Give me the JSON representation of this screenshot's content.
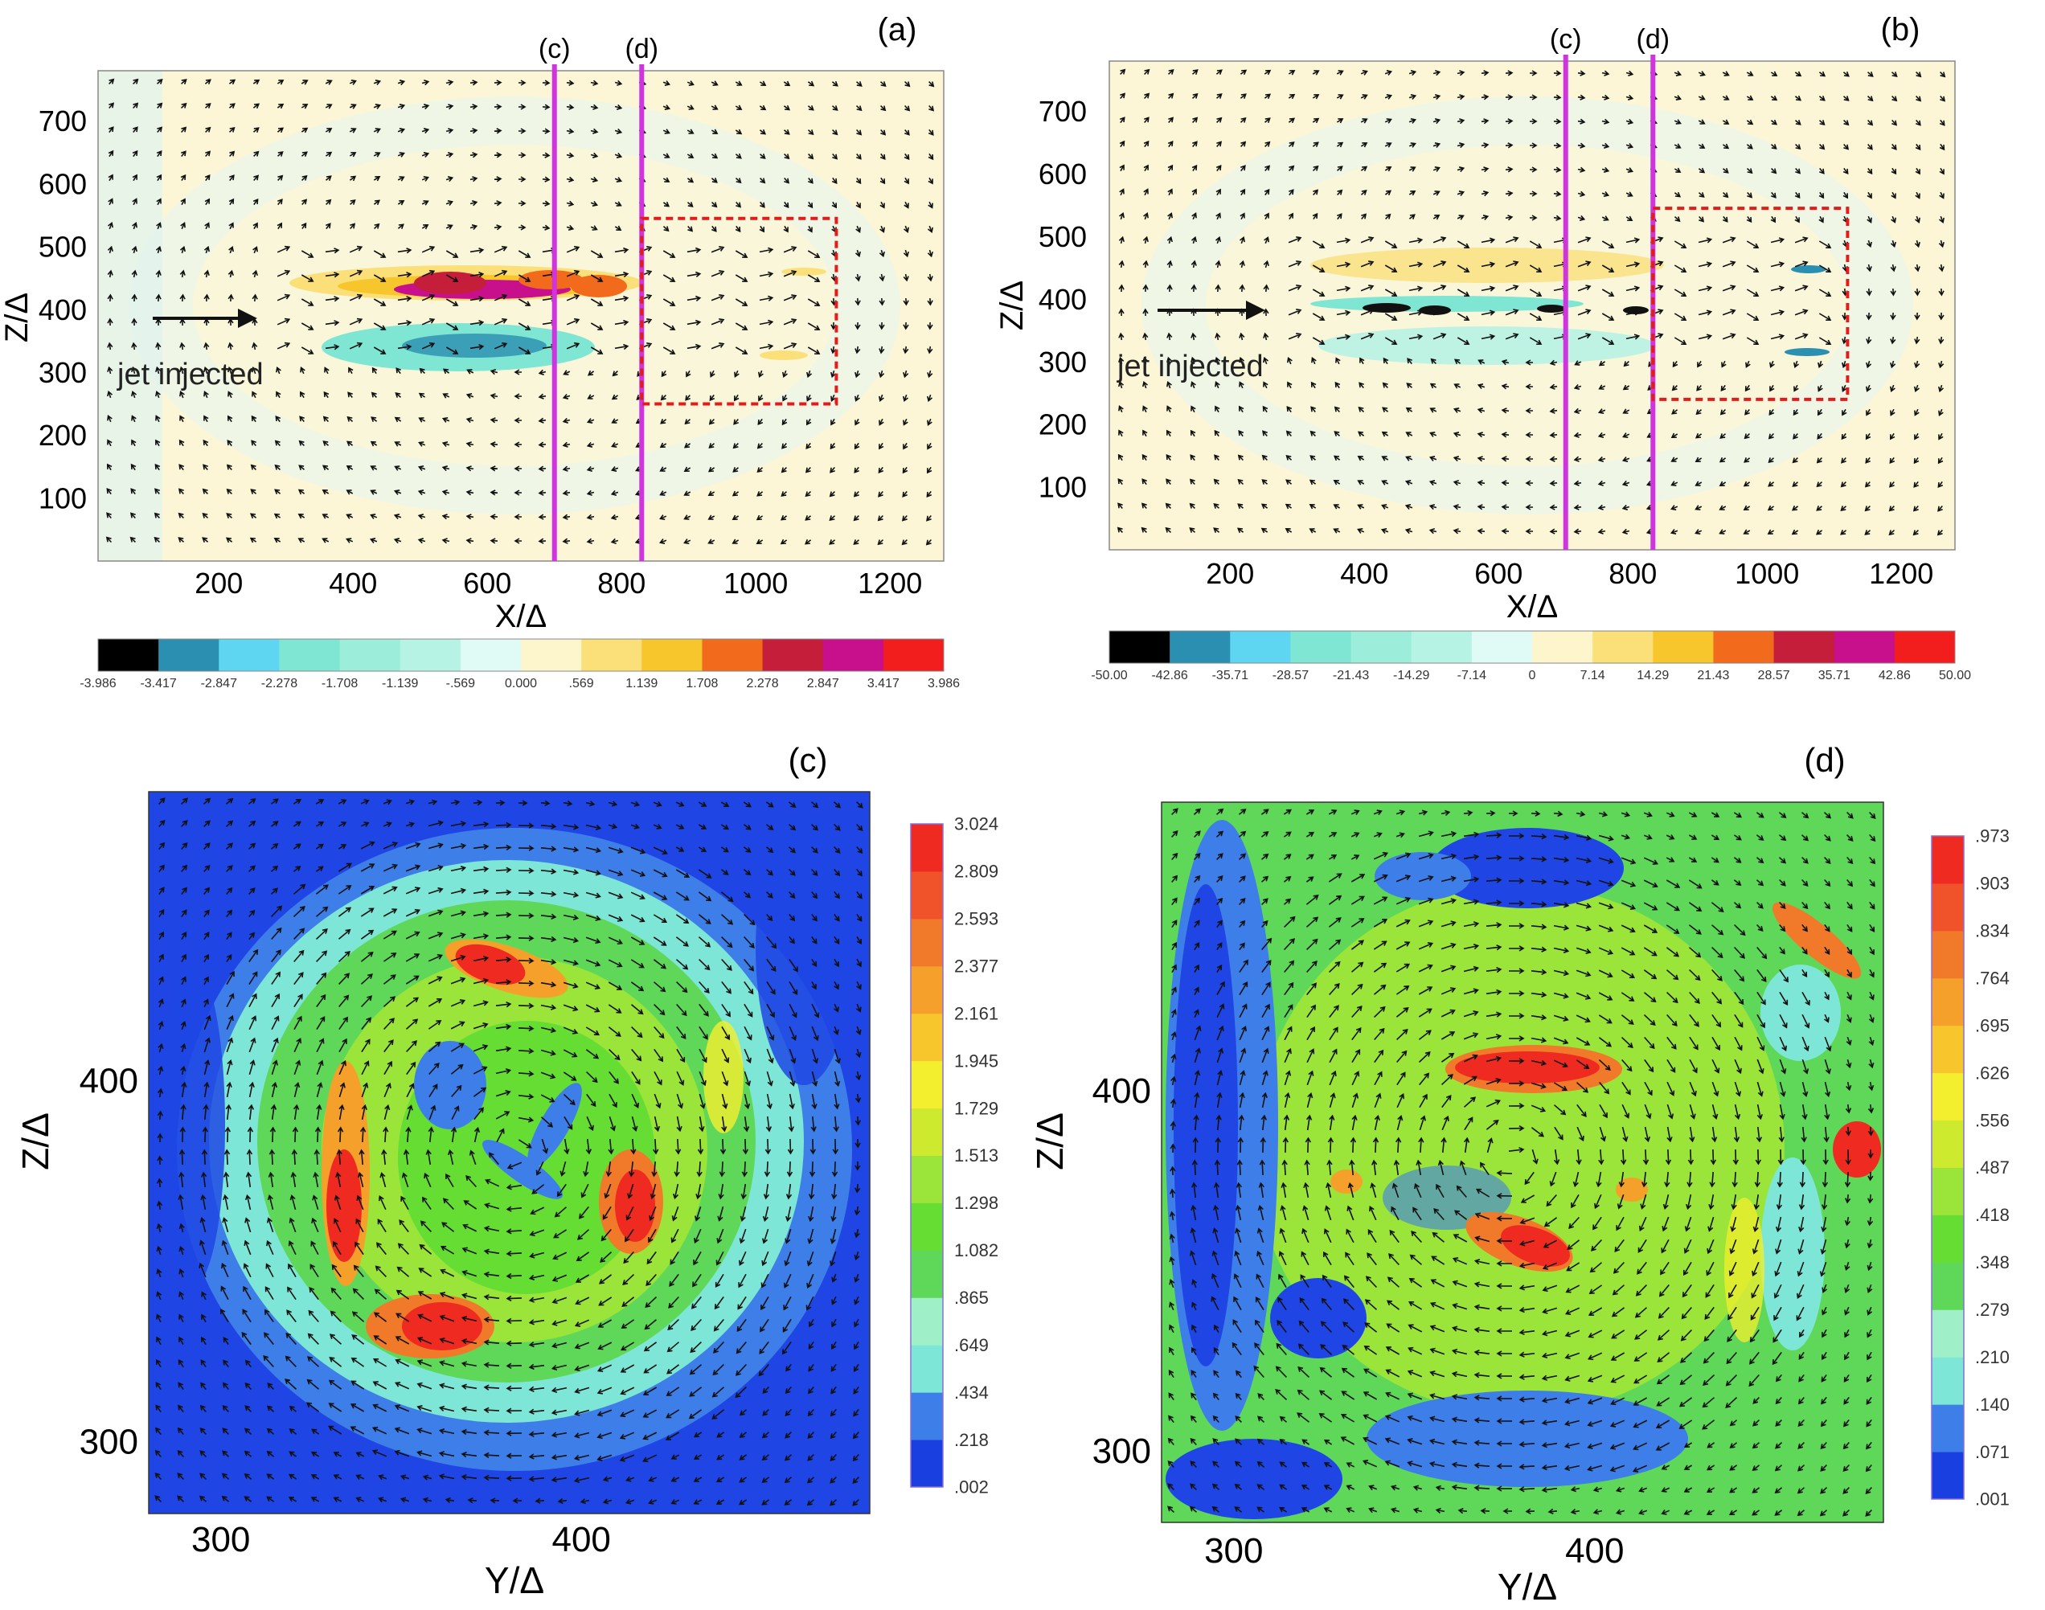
{
  "chart_data": [
    {
      "type": "heatmap",
      "panel_label": "(a)",
      "xlabel": "X/Δ",
      "ylabel": "Z/Δ",
      "xlim": [
        20,
        1280
      ],
      "ylim": [
        0,
        780
      ],
      "xticks": [
        "200",
        "400",
        "600",
        "800",
        "1000",
        "1200"
      ],
      "yticks": [
        "100",
        "200",
        "300",
        "400",
        "500",
        "600",
        "700"
      ],
      "annotation": "jet injected",
      "marker_lines": [
        {
          "label": "(c)",
          "x": 700
        },
        {
          "label": "(d)",
          "x": 830
        }
      ],
      "region_box": {
        "x": [
          830,
          1120
        ],
        "y": [
          250,
          545
        ]
      },
      "colorbar": {
        "orientation": "horizontal",
        "colors": [
          "#000000",
          "#2a8fb0",
          "#5ed6f2",
          "#7ee6d2",
          "#9cedd9",
          "#b7f3e4",
          "#e0faf6",
          "#fdf5cc",
          "#fbe07a",
          "#f7c62c",
          "#f26a1c",
          "#c41e3a",
          "#c8108c",
          "#f21d1d"
        ],
        "tick_labels": [
          "-3.986",
          "-3.417",
          "-2.847",
          "-2.278",
          "-1.708",
          "-1.139",
          "-.569",
          "0.000",
          ".569",
          "1.139",
          "1.708",
          "2.278",
          "2.847",
          "3.417",
          "3.986"
        ]
      }
    },
    {
      "type": "heatmap",
      "panel_label": "(b)",
      "xlabel": "X/Δ",
      "ylabel": "Z/Δ",
      "xlim": [
        20,
        1280
      ],
      "ylim": [
        0,
        780
      ],
      "xticks": [
        "200",
        "400",
        "600",
        "800",
        "1000",
        "1200"
      ],
      "yticks": [
        "100",
        "200",
        "300",
        "400",
        "500",
        "600",
        "700"
      ],
      "annotation": "jet injected",
      "marker_lines": [
        {
          "label": "(c)",
          "x": 700
        },
        {
          "label": "(d)",
          "x": 830
        }
      ],
      "region_box": {
        "x": [
          830,
          1120
        ],
        "y": [
          240,
          545
        ]
      },
      "colorbar": {
        "orientation": "horizontal",
        "colors": [
          "#000000",
          "#2a8fb0",
          "#5ed6f2",
          "#7ee6d2",
          "#9cedd9",
          "#b7f3e4",
          "#e0faf6",
          "#fdf5cc",
          "#fbe07a",
          "#f7c62c",
          "#f26a1c",
          "#c41e3a",
          "#c8108c",
          "#f21d1d"
        ],
        "tick_labels": [
          "-50.00",
          "-42.86",
          "-35.71",
          "-28.57",
          "-21.43",
          "-14.29",
          "-7.14",
          "0",
          "7.14",
          "14.29",
          "21.43",
          "28.57",
          "35.71",
          "42.86",
          "50.00"
        ]
      }
    },
    {
      "type": "heatmap",
      "panel_label": "(c)",
      "xlabel": "Y/Δ",
      "ylabel": "Z/Δ",
      "xlim": [
        280,
        480
      ],
      "ylim": [
        280,
        480
      ],
      "xticks": [
        "300",
        "400"
      ],
      "yticks": [
        "300",
        "400"
      ],
      "colorbar": {
        "orientation": "vertical",
        "colors": [
          "#1a3fe0",
          "#3e7ee8",
          "#7ee6d6",
          "#9ff0c8",
          "#5fd85a",
          "#66dd33",
          "#9be43a",
          "#cdea2e",
          "#f4ef2e",
          "#f7c62c",
          "#f5a02a",
          "#f07a2a",
          "#f0522a",
          "#ef2a20"
        ],
        "tick_labels": [
          ".002",
          ".218",
          ".434",
          ".649",
          ".865",
          "1.082",
          "1.298",
          "1.513",
          "1.729",
          "1.945",
          "2.161",
          "2.377",
          "2.593",
          "2.809",
          "3.024"
        ]
      }
    },
    {
      "type": "heatmap",
      "panel_label": "(d)",
      "xlabel": "Y/Δ",
      "ylabel": "Z/Δ",
      "xlim": [
        280,
        480
      ],
      "ylim": [
        280,
        480
      ],
      "xticks": [
        "300",
        "400"
      ],
      "yticks": [
        "300",
        "400"
      ],
      "colorbar": {
        "orientation": "vertical",
        "colors": [
          "#1a3fe0",
          "#3e7ee8",
          "#7ee6d6",
          "#9ff0c8",
          "#5fd85a",
          "#66dd33",
          "#9be43a",
          "#cdea2e",
          "#f4ef2e",
          "#f7c62c",
          "#f5a02a",
          "#f07a2a",
          "#f0522a",
          "#ef2a20"
        ],
        "tick_labels": [
          ".001",
          ".071",
          ".140",
          ".210",
          ".279",
          ".348",
          ".418",
          ".487",
          ".556",
          ".626",
          ".695",
          ".764",
          ".834",
          ".903",
          ".973"
        ]
      }
    }
  ]
}
